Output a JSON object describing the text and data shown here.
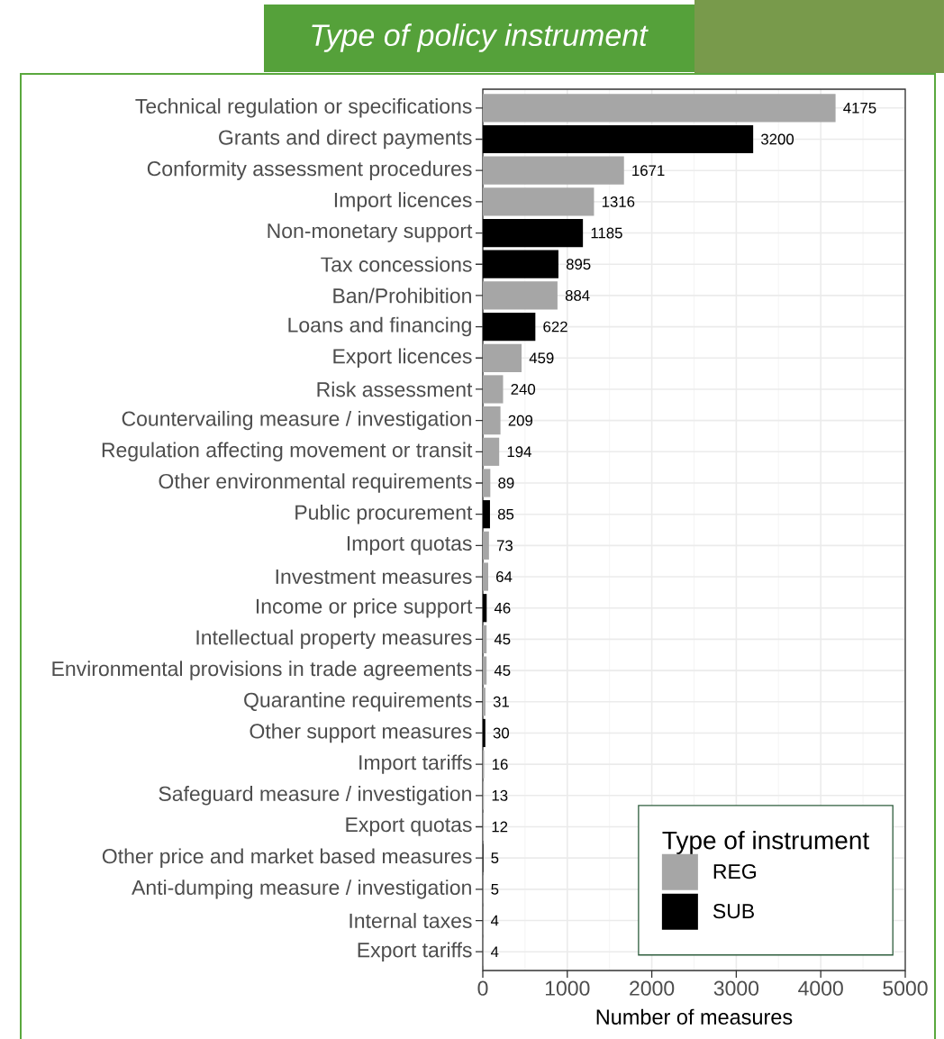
{
  "chart_data": {
    "type": "bar",
    "orientation": "horizontal",
    "title": "Type of policy instrument",
    "xlabel": "Number of measures",
    "legend_title": "Type of instrument",
    "categories": [
      "Technical regulation or specifications",
      "Grants and direct payments",
      "Conformity assessment procedures",
      "Import licences",
      "Non-monetary support",
      "Tax concessions",
      "Ban/Prohibition",
      "Loans and financing",
      "Export licences",
      "Risk assessment",
      "Countervailing measure / investigation",
      "Regulation affecting movement or transit",
      "Other environmental requirements",
      "Public procurement",
      "Import quotas",
      "Investment measures",
      "Income or price support",
      "Intellectual property measures",
      "Environmental provisions in trade agreements",
      "Quarantine requirements",
      "Other support measures",
      "Import tariffs",
      "Safeguard measure / investigation",
      "Export quotas",
      "Other price and market based measures",
      "Anti-dumping measure / investigation",
      "Internal taxes",
      "Export tariffs"
    ],
    "series": [
      {
        "name": "REG",
        "color": "#a6a6a6",
        "values": [
          4175,
          null,
          1671,
          1316,
          null,
          null,
          884,
          null,
          459,
          240,
          209,
          194,
          89,
          null,
          73,
          64,
          null,
          45,
          45,
          31,
          null,
          16,
          13,
          12,
          null,
          5,
          4,
          4
        ]
      },
      {
        "name": "SUB",
        "color": "#000000",
        "values": [
          null,
          3200,
          null,
          null,
          1185,
          895,
          null,
          622,
          null,
          null,
          null,
          null,
          null,
          85,
          null,
          null,
          46,
          null,
          null,
          null,
          30,
          null,
          null,
          null,
          5,
          null,
          null,
          null
        ]
      }
    ],
    "xlim": [
      0,
      5000
    ],
    "xticks": [
      0,
      1000,
      2000,
      3000,
      4000,
      5000
    ],
    "grid": true,
    "legend": "bottom right",
    "data_labels": true
  }
}
